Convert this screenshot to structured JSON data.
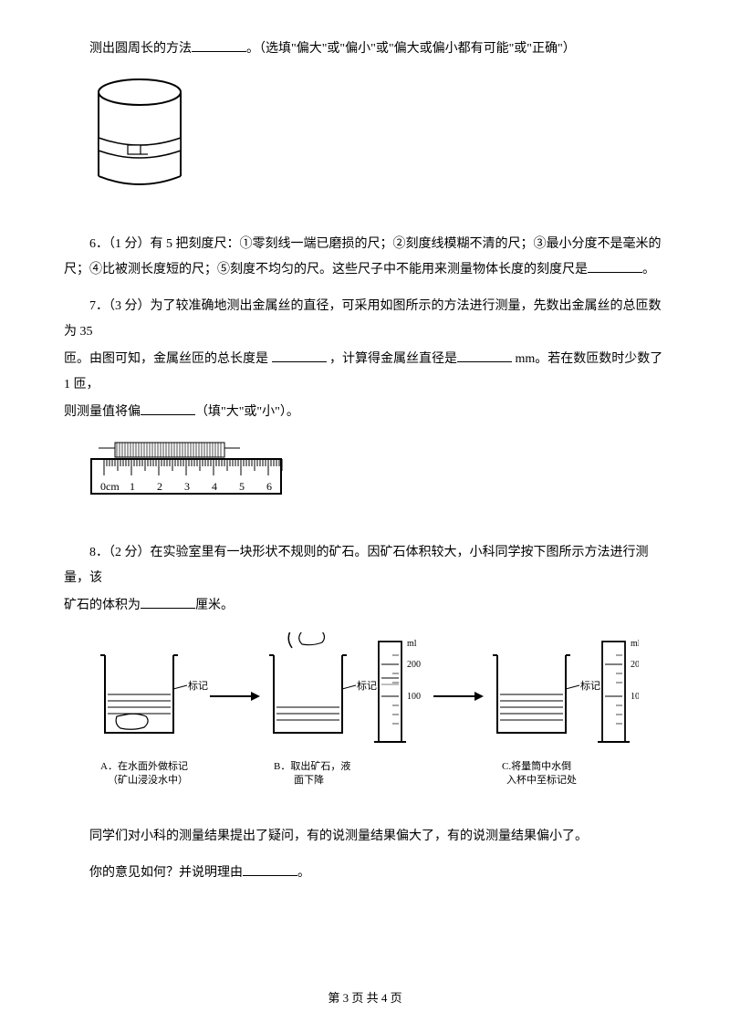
{
  "q5_tail": {
    "pre": "测出圆周长的方法",
    "post": "。（选填\"偏大\"或\"偏小\"或\"偏大或偏小都有可能\"或\"正确\"）"
  },
  "q6": {
    "label": "6．（1 分）有 5 把刻度尺：①零刻线一端已磨损的尺；②刻度线模糊不清的尺；③最小分度不是毫米的尺；④比被测长度短的尺；⑤刻度不均匀的尺。这些尺子中不能用来测量物体长度的刻度尺是",
    "end": "。"
  },
  "q7": {
    "line1_a": "7．（3 分）为了较准确地测出金属丝的直径，可采用如图所示的方法进行测量，先数出金属丝的总匝数为 35",
    "line2_a": "匝。由图可知，金属丝匝的总长度是 ",
    "line2_b": " ，计算得金属丝直径是",
    "line2_c": " mm。若在数匝数时少数了 1 匝，",
    "line3_a": "则测量值将偏",
    "line3_b": "（填\"大\"或\"小\"）。"
  },
  "q8": {
    "line1_a": "8．（2 分）在实验室里有一块形状不规则的矿石。因矿石体积较大，小科同学按下图所示方法进行测量，该",
    "line2_a": "矿石的体积为",
    "line2_b": "厘米。"
  },
  "discussion": {
    "line1": "同学们对小科的测量结果提出了疑问，有的说测量结果偏大了，有的说测量结果偏小了。",
    "line2_a": "你的意见如何？并说明理由",
    "line2_b": "。"
  },
  "ruler": {
    "labels": [
      "0cm",
      "1",
      "2",
      "3",
      "4",
      "5",
      "6"
    ]
  },
  "beaker_diagram": {
    "label_mark": "标记",
    "label_a": "A．在水面外做标记",
    "label_a2": "（矿山浸没水中）",
    "label_b": "B．取出矿石，液",
    "label_b2": "面下降",
    "label_c": "C.将量筒中水倒",
    "label_c2": "入杯中至标记处",
    "ml": "ml",
    "t200": "200",
    "t100": "100"
  },
  "footer": {
    "text": "第 3 页 共 4 页"
  },
  "colors": {
    "text": "#000000",
    "bg": "#ffffff"
  }
}
